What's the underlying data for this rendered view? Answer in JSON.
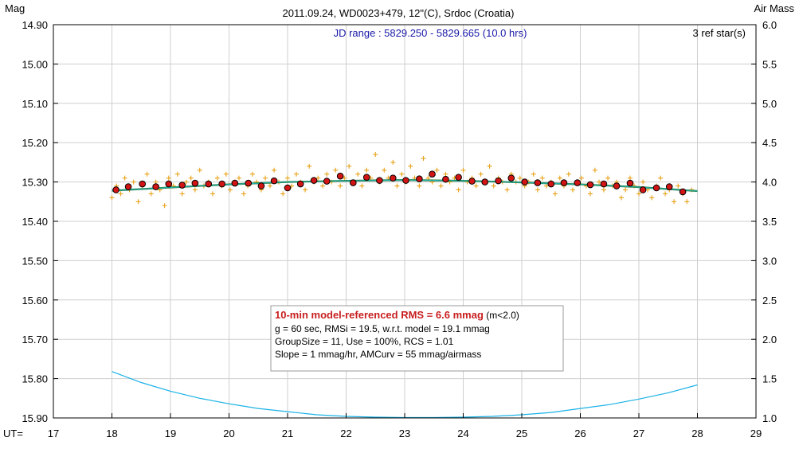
{
  "chart_data": {
    "type": "scatter",
    "title": "2011.09.24, WD0023+479, 12\"(C), Srdoc (Croatia)",
    "subtitle": "JD range : 5829.250 - 5829.665 (10.0 hrs)",
    "ref_stars": "3 ref star(s)",
    "y_left_label": "Mag",
    "y_right_label": "Air Mass",
    "x_label": "UT=",
    "xlim": [
      17,
      29
    ],
    "x_ticks": [
      "17",
      "18",
      "19",
      "20",
      "21",
      "22",
      "23",
      "24",
      "25",
      "26",
      "27",
      "28",
      "29"
    ],
    "ylim_left": [
      14.9,
      15.9
    ],
    "ylim_left_inverted": true,
    "y_left_ticks": [
      "14.90",
      "15.00",
      "15.10",
      "15.20",
      "15.30",
      "15.40",
      "15.50",
      "15.60",
      "15.70",
      "15.80",
      "15.90"
    ],
    "ylim_right": [
      1.0,
      6.0
    ],
    "y_right_ticks": [
      "6.0",
      "5.5",
      "5.0",
      "4.5",
      "4.0",
      "3.5",
      "3.0",
      "2.5",
      "2.0",
      "1.5",
      "1.0"
    ],
    "grid": true,
    "colors": {
      "raw_points": "#e8a21a",
      "group_means_fill": "#d21414",
      "model_line": "#20b2aa",
      "smooth_line": "#2a6e2a",
      "airmass_line": "#1ab2e6",
      "grid": "#cfcfcf"
    },
    "series": [
      {
        "name": "",
        "kind": "raw",
        "x": [
          18.0,
          18.08,
          18.15,
          18.22,
          18.3,
          18.37,
          18.45,
          18.52,
          18.6,
          18.67,
          18.75,
          18.82,
          18.9,
          18.97,
          19.05,
          19.12,
          19.2,
          19.27,
          19.35,
          19.42,
          19.5,
          19.57,
          19.65,
          19.72,
          19.8,
          19.87,
          19.95,
          20.02,
          20.1,
          20.17,
          20.25,
          20.32,
          20.4,
          20.47,
          20.55,
          20.62,
          20.7,
          20.77,
          20.85,
          20.92,
          21.0,
          21.07,
          21.15,
          21.22,
          21.3,
          21.37,
          21.45,
          21.52,
          21.6,
          21.67,
          21.75,
          21.82,
          21.9,
          21.97,
          22.05,
          22.12,
          22.2,
          22.27,
          22.35,
          22.42,
          22.5,
          22.57,
          22.65,
          22.72,
          22.8,
          22.87,
          22.95,
          23.02,
          23.1,
          23.17,
          23.25,
          23.32,
          23.4,
          23.47,
          23.55,
          23.62,
          23.7,
          23.77,
          23.85,
          23.92,
          24.0,
          24.07,
          24.15,
          24.22,
          24.3,
          24.37,
          24.45,
          24.52,
          24.6,
          24.67,
          24.75,
          24.82,
          24.9,
          24.97,
          25.05,
          25.12,
          25.2,
          25.27,
          25.35,
          25.42,
          25.5,
          25.57,
          25.65,
          25.72,
          25.8,
          25.87,
          25.95,
          26.02,
          26.1,
          26.17,
          26.25,
          26.32,
          26.4,
          26.47,
          26.55,
          26.62,
          26.7,
          26.77,
          26.85,
          26.92,
          27.0,
          27.07,
          27.15,
          27.22,
          27.3,
          27.37,
          27.45,
          27.52,
          27.6,
          27.67,
          27.75,
          27.82,
          27.9
        ],
        "y": [
          15.34,
          15.31,
          15.33,
          15.29,
          15.32,
          15.3,
          15.35,
          15.31,
          15.28,
          15.33,
          15.3,
          15.32,
          15.36,
          15.29,
          15.31,
          15.28,
          15.33,
          15.3,
          15.29,
          15.32,
          15.27,
          15.31,
          15.3,
          15.33,
          15.29,
          15.31,
          15.28,
          15.32,
          15.3,
          15.29,
          15.33,
          15.31,
          15.28,
          15.3,
          15.32,
          15.29,
          15.31,
          15.27,
          15.3,
          15.33,
          15.29,
          15.31,
          15.28,
          15.3,
          15.32,
          15.26,
          15.3,
          15.29,
          15.31,
          15.28,
          15.3,
          15.27,
          15.31,
          15.29,
          15.26,
          15.3,
          15.28,
          15.31,
          15.27,
          15.29,
          15.23,
          15.3,
          15.27,
          15.29,
          15.25,
          15.31,
          15.28,
          15.3,
          15.26,
          15.29,
          15.31,
          15.24,
          15.29,
          15.3,
          15.27,
          15.31,
          15.28,
          15.3,
          15.29,
          15.32,
          15.27,
          15.3,
          15.29,
          15.31,
          15.28,
          15.3,
          15.26,
          15.31,
          15.29,
          15.3,
          15.32,
          15.28,
          15.3,
          15.29,
          15.31,
          15.3,
          15.28,
          15.32,
          15.29,
          15.31,
          15.3,
          15.33,
          15.29,
          15.31,
          15.28,
          15.32,
          15.3,
          15.29,
          15.31,
          15.33,
          15.27,
          15.3,
          15.32,
          15.29,
          15.31,
          15.3,
          15.34,
          15.32,
          15.29,
          15.31,
          15.33,
          15.3,
          15.32,
          15.34,
          15.31,
          15.29,
          15.33,
          15.32,
          15.35,
          15.31,
          15.33,
          15.35,
          15.32
        ]
      },
      {
        "name": "",
        "kind": "group_means",
        "x": [
          18.07,
          18.28,
          18.52,
          18.75,
          18.97,
          19.2,
          19.42,
          19.65,
          19.88,
          20.1,
          20.33,
          20.55,
          20.77,
          21.0,
          21.22,
          21.45,
          21.67,
          21.9,
          22.12,
          22.35,
          22.57,
          22.8,
          23.02,
          23.25,
          23.47,
          23.7,
          23.92,
          24.15,
          24.37,
          24.6,
          24.82,
          25.05,
          25.27,
          25.5,
          25.72,
          25.95,
          26.17,
          26.4,
          26.62,
          26.85,
          27.07,
          27.3,
          27.52,
          27.75
        ],
        "y": [
          15.32,
          15.312,
          15.305,
          15.312,
          15.305,
          15.308,
          15.303,
          15.305,
          15.305,
          15.303,
          15.303,
          15.31,
          15.297,
          15.315,
          15.305,
          15.296,
          15.298,
          15.285,
          15.302,
          15.288,
          15.296,
          15.29,
          15.296,
          15.292,
          15.28,
          15.293,
          15.288,
          15.298,
          15.3,
          15.297,
          15.29,
          15.3,
          15.302,
          15.305,
          15.302,
          15.302,
          15.307,
          15.305,
          15.31,
          15.303,
          15.32,
          15.315,
          15.312,
          15.325
        ]
      },
      {
        "name": "",
        "kind": "model",
        "x": [
          18.0,
          19.0,
          20.0,
          21.0,
          22.0,
          23.0,
          24.0,
          25.0,
          26.0,
          27.0,
          28.0
        ],
        "y": [
          15.322,
          15.314,
          15.306,
          15.3,
          15.297,
          15.295,
          15.297,
          15.301,
          15.306,
          15.313,
          15.323
        ]
      },
      {
        "name": "",
        "kind": "airmass",
        "axis": "right",
        "x": [
          18.0,
          18.5,
          19.0,
          19.5,
          20.0,
          20.5,
          21.0,
          21.5,
          22.0,
          22.5,
          23.0,
          23.5,
          24.0,
          24.5,
          25.0,
          25.5,
          26.0,
          26.5,
          27.0,
          27.5,
          28.0
        ],
        "y": [
          1.59,
          1.45,
          1.34,
          1.25,
          1.18,
          1.12,
          1.08,
          1.04,
          1.02,
          1.01,
          1.0,
          1.0,
          1.01,
          1.02,
          1.04,
          1.07,
          1.12,
          1.17,
          1.24,
          1.32,
          1.42
        ]
      }
    ]
  },
  "stats_box": {
    "line1_bold": "10-min model-referenced RMS = 6.6 mmag",
    "line1_suffix": " (m<2.0)",
    "line2": "g = 60 sec, RMSi = 19.5, w.r.t. model = 19.1 mmag",
    "line3": "GroupSize = 11, Use = 100%, RCS = 1.01",
    "line4": "Slope = 1 mmag/hr, AMCurv = 55 mmag/airmass"
  }
}
